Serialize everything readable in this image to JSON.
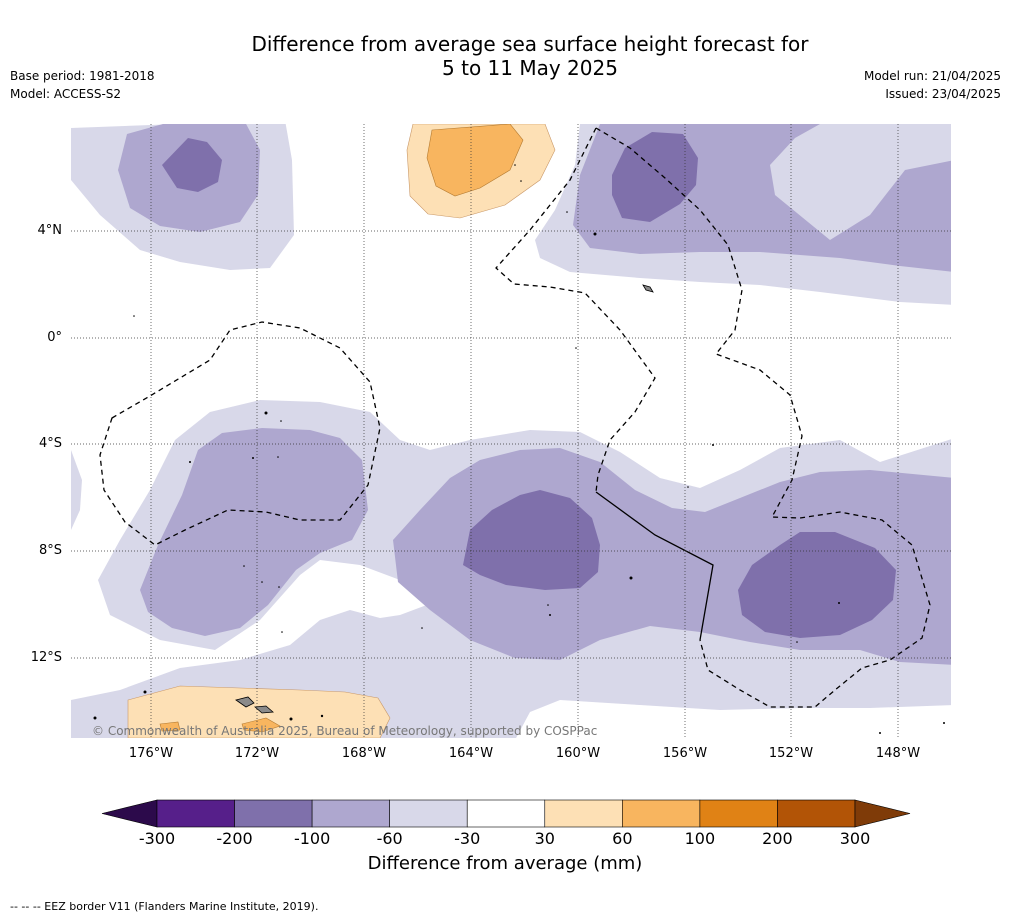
{
  "title_line1": "Difference from average sea surface height forecast for",
  "title_line2": "5 to 11 May 2025",
  "base_period": "Base period: 1981-2018",
  "model": "Model: ACCESS-S2",
  "model_run": "Model run: 21/04/2025",
  "issued": "Issued: 23/04/2025",
  "copyright": "© Commonwealth of Australia 2025, Bureau of Meteorology, supported by COSPPac",
  "lon_labels": [
    "176°W",
    "172°W",
    "168°W",
    "164°W",
    "160°W",
    "156°W",
    "152°W",
    "148°W"
  ],
  "lat_labels": [
    "4°N",
    "0°",
    "4°S",
    "8°S",
    "12°S"
  ],
  "colorbar": {
    "title": "Difference from average (mm)",
    "ticks": [
      "-300",
      "-200",
      "-100",
      "-60",
      "-30",
      "30",
      "60",
      "100",
      "200",
      "300"
    ],
    "colors": [
      "#561f8a",
      "#7f70ab",
      "#aea7cf",
      "#d8d8e9",
      "#ffffff",
      "#fde0b5",
      "#f8b55f",
      "#e08215",
      "#b25406"
    ],
    "extend_low": "#2c0a4b",
    "extend_high": "#7f3b08"
  },
  "footnote": "--  --  -- EEZ border V11 (Flanders Marine Institute, 2019)."
}
